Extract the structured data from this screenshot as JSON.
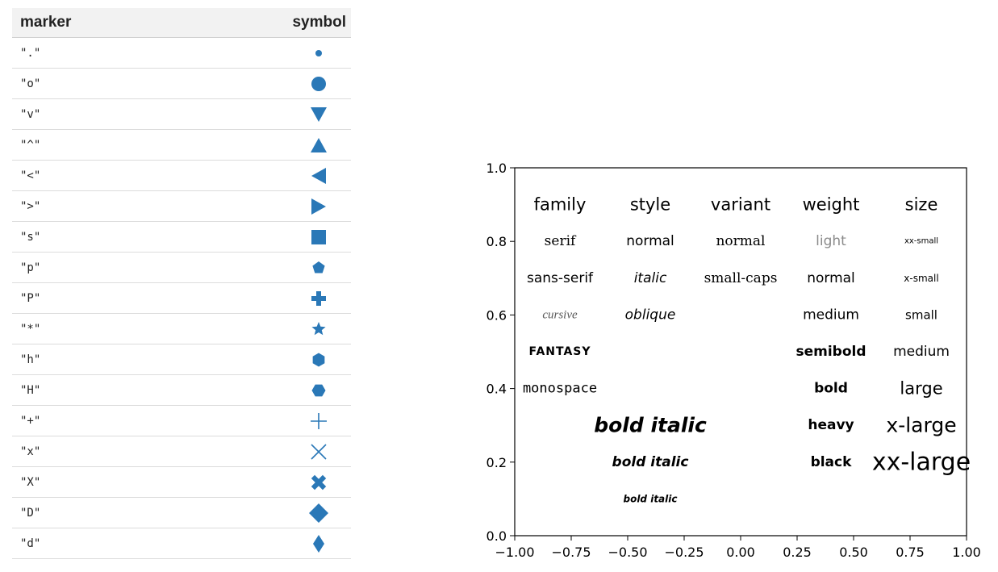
{
  "table": {
    "header_marker": "marker",
    "header_symbol": "symbol",
    "accent_color": "#2a78b7",
    "rows": [
      {
        "code": "\".\"",
        "shape": "point"
      },
      {
        "code": "\"o\"",
        "shape": "circle"
      },
      {
        "code": "\"v\"",
        "shape": "triangle-down"
      },
      {
        "code": "\"^\"",
        "shape": "triangle-up"
      },
      {
        "code": "\"<\"",
        "shape": "triangle-left"
      },
      {
        "code": "\">\"",
        "shape": "triangle-right"
      },
      {
        "code": "\"s\"",
        "shape": "square"
      },
      {
        "code": "\"p\"",
        "shape": "pentagon"
      },
      {
        "code": "\"P\"",
        "shape": "plus-filled"
      },
      {
        "code": "\"*\"",
        "shape": "star"
      },
      {
        "code": "\"h\"",
        "shape": "hexagon1"
      },
      {
        "code": "\"H\"",
        "shape": "hexagon2"
      },
      {
        "code": "\"+\"",
        "shape": "plus"
      },
      {
        "code": "\"x\"",
        "shape": "x"
      },
      {
        "code": "\"X\"",
        "shape": "x-filled"
      },
      {
        "code": "\"D\"",
        "shape": "diamond"
      },
      {
        "code": "\"d\"",
        "shape": "thin-diamond"
      }
    ]
  },
  "chart_data": {
    "type": "scatter",
    "xlim": [
      -1.0,
      1.0
    ],
    "ylim": [
      0.0,
      1.0
    ],
    "xticks": [
      "−1.00",
      "−0.75",
      "−0.50",
      "−0.25",
      "0.00",
      "0.25",
      "0.50",
      "0.75",
      "1.00"
    ],
    "yticks": [
      "0.0",
      "0.2",
      "0.4",
      "0.6",
      "0.8",
      "1.0"
    ],
    "xtick_values": [
      -1.0,
      -0.75,
      -0.5,
      -0.25,
      0.0,
      0.25,
      0.5,
      0.75,
      1.0
    ],
    "ytick_values": [
      0.0,
      0.2,
      0.4,
      0.6,
      0.8,
      1.0
    ],
    "grid": false,
    "annotations": [
      {
        "text": "family",
        "x": -0.8,
        "y": 0.9,
        "style": "header"
      },
      {
        "text": "style",
        "x": -0.4,
        "y": 0.9,
        "style": "header"
      },
      {
        "text": "variant",
        "x": 0.0,
        "y": 0.9,
        "style": "header"
      },
      {
        "text": "weight",
        "x": 0.4,
        "y": 0.9,
        "style": "header"
      },
      {
        "text": "size",
        "x": 0.8,
        "y": 0.9,
        "style": "header"
      },
      {
        "text": "serif",
        "x": -0.8,
        "y": 0.8,
        "style": "serif"
      },
      {
        "text": "sans-serif",
        "x": -0.8,
        "y": 0.7,
        "style": "sans"
      },
      {
        "text": "cursive",
        "x": -0.8,
        "y": 0.6,
        "style": "cursive"
      },
      {
        "text": "FANTASY",
        "x": -0.8,
        "y": 0.5,
        "style": "fantasy"
      },
      {
        "text": "monospace",
        "x": -0.8,
        "y": 0.4,
        "style": "mono"
      },
      {
        "text": "normal",
        "x": -0.4,
        "y": 0.8,
        "style": "normal"
      },
      {
        "text": "italic",
        "x": -0.4,
        "y": 0.7,
        "style": "italic"
      },
      {
        "text": "oblique",
        "x": -0.4,
        "y": 0.6,
        "style": "oblique"
      },
      {
        "text": "normal",
        "x": 0.0,
        "y": 0.8,
        "style": "serif"
      },
      {
        "text": "small-caps",
        "x": 0.0,
        "y": 0.7,
        "style": "serif"
      },
      {
        "text": "light",
        "x": 0.4,
        "y": 0.8,
        "style": "light"
      },
      {
        "text": "normal",
        "x": 0.4,
        "y": 0.7,
        "style": "normal"
      },
      {
        "text": "medium",
        "x": 0.4,
        "y": 0.6,
        "style": "normal"
      },
      {
        "text": "semibold",
        "x": 0.4,
        "y": 0.5,
        "style": "semibold"
      },
      {
        "text": "bold",
        "x": 0.4,
        "y": 0.4,
        "style": "bold"
      },
      {
        "text": "heavy",
        "x": 0.4,
        "y": 0.3,
        "style": "bold"
      },
      {
        "text": "black",
        "x": 0.4,
        "y": 0.2,
        "style": "bold"
      },
      {
        "text": "xx-small",
        "x": 0.8,
        "y": 0.8,
        "style": "xx-small"
      },
      {
        "text": "x-small",
        "x": 0.8,
        "y": 0.7,
        "style": "x-small"
      },
      {
        "text": "small",
        "x": 0.8,
        "y": 0.6,
        "style": "small"
      },
      {
        "text": "medium",
        "x": 0.8,
        "y": 0.5,
        "style": "medium"
      },
      {
        "text": "large",
        "x": 0.8,
        "y": 0.4,
        "style": "large"
      },
      {
        "text": "x-large",
        "x": 0.8,
        "y": 0.3,
        "style": "x-large"
      },
      {
        "text": "xx-large",
        "x": 0.8,
        "y": 0.2,
        "style": "xx-large"
      },
      {
        "text": "bold italic",
        "x": -0.4,
        "y": 0.3,
        "style": "bi-large"
      },
      {
        "text": "bold italic",
        "x": -0.4,
        "y": 0.2,
        "style": "bi-medium"
      },
      {
        "text": "bold italic",
        "x": -0.4,
        "y": 0.1,
        "style": "bi-small"
      }
    ]
  }
}
